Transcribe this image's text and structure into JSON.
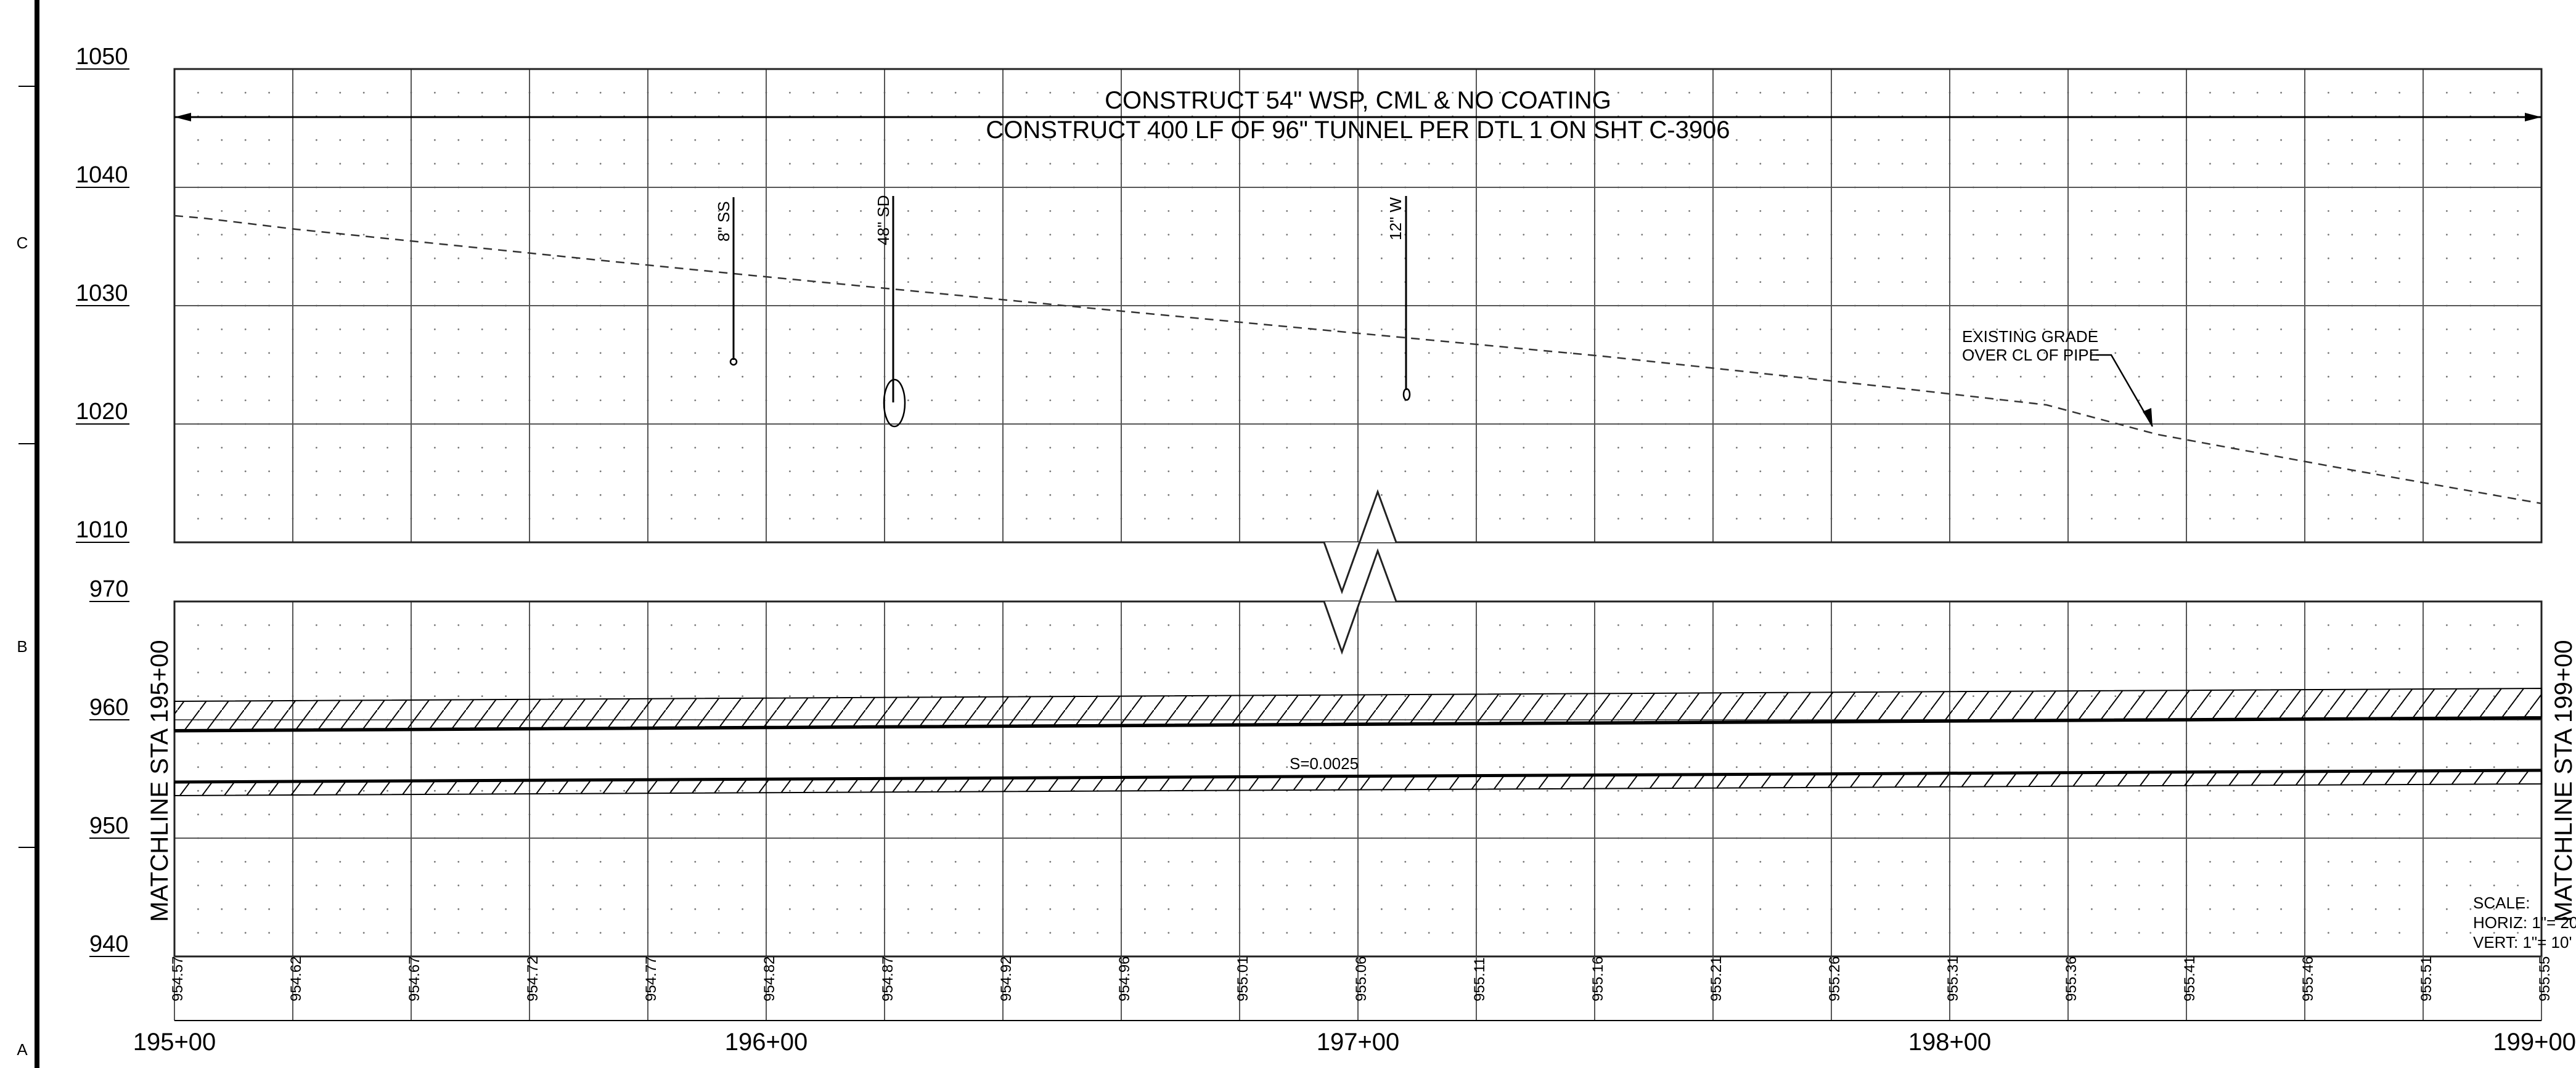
{
  "zone_letters": [
    "C",
    "B",
    "A"
  ],
  "upper_elev_labels": [
    "1050",
    "1040",
    "1030",
    "1020",
    "1010"
  ],
  "lower_elev_labels": [
    "970",
    "960",
    "950",
    "940"
  ],
  "station_labels": [
    "195+00",
    "196+00",
    "197+00",
    "198+00",
    "199+00"
  ],
  "bottom_elevations": [
    "954.57",
    "954.62",
    "954.67",
    "954.72",
    "954.77",
    "954.82",
    "954.87",
    "954.92",
    "954.96",
    "955.01",
    "955.06",
    "955.11",
    "955.16",
    "955.21",
    "955.26",
    "955.31",
    "955.36",
    "955.41",
    "955.46",
    "955.51",
    "955.55"
  ],
  "notes": {
    "construct_pipe": "CONSTRUCT 54\" WSP, CML & NO COATING",
    "construct_tunnel": "CONSTRUCT 400 LF OF 96\" TUNNEL PER DTL 1 ON SHT C-3906",
    "existing_grade_line1": "EXISTING GRADE",
    "existing_grade_line2": "OVER CL OF PIPE",
    "slope": "S=0.0025"
  },
  "utilities": [
    {
      "label": "8\" SS"
    },
    {
      "label": "48\" SD"
    },
    {
      "label": "12\" W"
    }
  ],
  "matchlines": {
    "left": "MATCHLINE STA 195+00",
    "right": "MATCHLINE STA 199+00"
  },
  "scale": {
    "title": "SCALE:",
    "horiz": "HORIZ: 1\"= 20'",
    "vert": "VERT:  1\"= 10'"
  }
}
